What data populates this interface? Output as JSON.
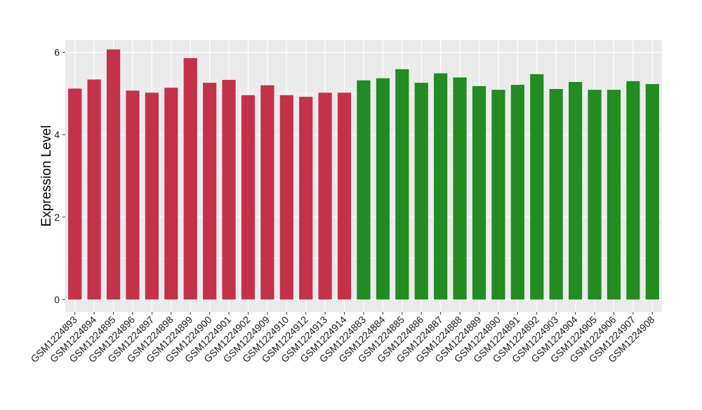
{
  "chart_data": {
    "type": "bar",
    "title": "",
    "xlabel": "",
    "ylabel": "Expression Level",
    "ylim": [
      -0.3,
      6.3
    ],
    "yticks": [
      0,
      2,
      4,
      6
    ],
    "grid": true,
    "legend": "none",
    "categories": [
      "GSM1224893",
      "GSM1224894",
      "GSM1224895",
      "GSM1224896",
      "GSM1224897",
      "GSM1224898",
      "GSM1224899",
      "GSM1224900",
      "GSM1224901",
      "GSM1224902",
      "GSM1224909",
      "GSM1224910",
      "GSM1224912",
      "GSM1224913",
      "GSM1224914",
      "GSM1224883",
      "GSM1224884",
      "GSM1224885",
      "GSM1224886",
      "GSM1224887",
      "GSM1224888",
      "GSM1224889",
      "GSM1224890",
      "GSM1224891",
      "GSM1224892",
      "GSM1224903",
      "GSM1224904",
      "GSM1224905",
      "GSM1224906",
      "GSM1224907",
      "GSM1224908"
    ],
    "values": [
      5.12,
      5.34,
      6.07,
      5.07,
      5.02,
      5.14,
      5.86,
      5.26,
      5.33,
      4.96,
      5.2,
      4.96,
      4.92,
      5.02,
      5.02,
      5.32,
      5.37,
      5.59,
      5.26,
      5.49,
      5.39,
      5.18,
      5.09,
      5.21,
      5.47,
      5.11,
      5.28,
      5.09,
      5.09,
      5.3,
      5.23
    ],
    "groups": [
      "red",
      "red",
      "red",
      "red",
      "red",
      "red",
      "red",
      "red",
      "red",
      "red",
      "red",
      "red",
      "red",
      "red",
      "red",
      "green",
      "green",
      "green",
      "green",
      "green",
      "green",
      "green",
      "green",
      "green",
      "green",
      "green",
      "green",
      "green",
      "green",
      "green",
      "green"
    ],
    "colors": {
      "red": "#C3314A",
      "green": "#228B22",
      "panel": "#EBEBEB",
      "grid": "#FFFFFF"
    }
  }
}
